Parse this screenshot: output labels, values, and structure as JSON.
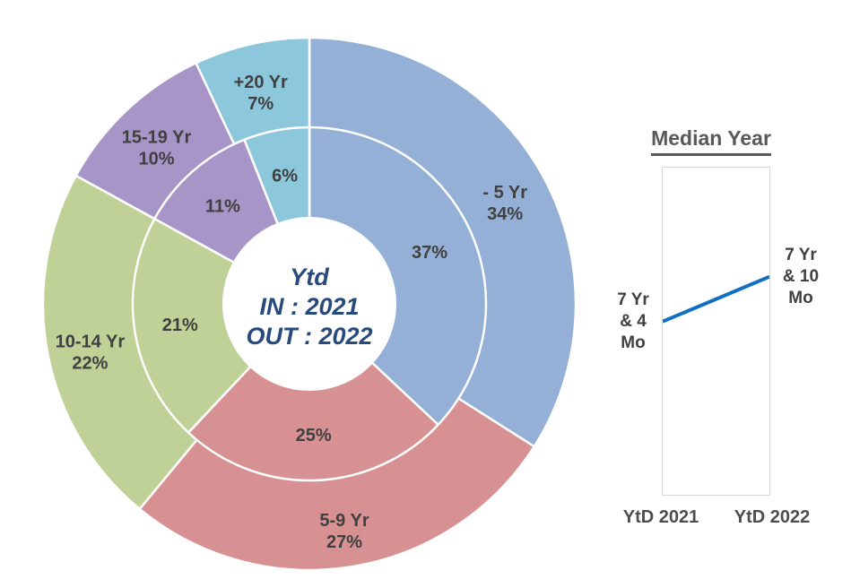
{
  "chart_data": [
    {
      "type": "pie",
      "subtype": "nested-double-donut",
      "center_label_lines": [
        "Ytd",
        "IN : 2021",
        "OUT : 2022"
      ],
      "categories": [
        "- 5 Yr",
        "5-9 Yr",
        "10-14 Yr",
        "15-19 Yr",
        "+20 Yr"
      ],
      "series": [
        {
          "name": "OUT : 2022 (outer ring)",
          "values_pct": [
            34,
            27,
            22,
            10,
            7
          ]
        },
        {
          "name": "IN : 2021 (inner ring)",
          "values_pct": [
            37,
            25,
            21,
            11,
            6
          ]
        }
      ],
      "colors": [
        "#94B0D7",
        "#D89192",
        "#BFD197",
        "#A795C7",
        "#8CC7DB"
      ],
      "start_angle_deg": 0,
      "direction": "clockwise",
      "separator_color": "#FFFFFF",
      "label_color": "#404040",
      "center_text_color": "#27497B"
    },
    {
      "type": "line",
      "title": "Median Year",
      "categories": [
        "YtD 2021",
        "YtD 2022"
      ],
      "values_years": [
        7.333,
        7.833
      ],
      "point_labels": [
        [
          "7 Yr",
          "& 4",
          "Mo"
        ],
        [
          "7 Yr",
          "& 10",
          "Mo"
        ]
      ],
      "ylim_years": [
        5.4,
        9.05
      ],
      "grid": false,
      "legend": "none",
      "line_color": "#1270C2",
      "box_border_color": "#D6D6D6",
      "title_color": "#595959",
      "label_color": "#404040",
      "axis_label_color": "#4D4D4D"
    }
  ]
}
